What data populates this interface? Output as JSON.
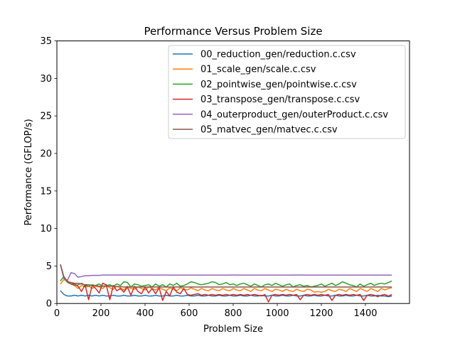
{
  "chart_data": {
    "type": "line",
    "title": "Performance Versus Problem Size",
    "xlabel": "Problem Size",
    "ylabel": "Performance (GFLOP/s)",
    "xlim": [
      0,
      1600
    ],
    "ylim": [
      0,
      35
    ],
    "xticks": [
      0,
      200,
      400,
      600,
      800,
      1000,
      1200,
      1400
    ],
    "yticks": [
      0,
      5,
      10,
      15,
      20,
      25,
      30,
      35
    ],
    "grid": false,
    "legend_position": "top-right",
    "x_start": 16,
    "x_step": 16,
    "series": [
      {
        "name": "00_reduction_gen/reduction.c.csv",
        "color": "#1f77b4",
        "values": [
          1.7,
          1.2,
          1.0,
          1.0,
          1.1,
          1.0,
          1.1,
          1.0,
          1.1,
          1.0,
          1.1,
          1.0,
          1.1,
          1.0,
          1.0,
          1.1,
          1.0,
          1.0,
          1.1,
          1.0,
          1.0,
          1.1,
          1.0,
          1.0,
          1.1,
          1.0,
          1.0,
          1.1,
          1.0,
          1.0,
          1.1,
          1.0,
          1.0,
          1.1,
          1.0,
          1.0,
          1.1,
          1.0,
          1.0,
          1.1,
          1.0,
          1.0,
          1.1,
          1.0,
          1.0,
          1.1,
          1.0,
          1.0,
          1.1,
          1.0,
          1.0,
          1.1,
          1.0,
          1.0,
          1.1,
          1.0,
          1.0,
          1.1,
          1.0,
          1.0,
          1.1,
          1.0,
          1.0,
          1.1,
          1.0,
          1.0,
          1.1,
          1.0,
          1.0,
          1.1,
          1.0,
          1.0,
          1.1,
          1.0,
          1.0,
          1.1,
          1.0,
          1.0,
          1.1,
          1.0,
          1.0,
          1.1,
          1.0,
          1.0,
          1.1,
          1.0,
          1.0,
          1.1,
          1.0,
          1.0,
          1.1,
          1.0,
          1.0,
          0.9,
          1.0
        ]
      },
      {
        "name": "01_scale_gen/scale.c.csv",
        "color": "#ff7f0e",
        "values": [
          2.6,
          3.2,
          2.9,
          2.6,
          2.4,
          2.0,
          2.4,
          2.2,
          2.3,
          2.0,
          2.3,
          2.2,
          2.0,
          2.4,
          2.1,
          1.9,
          2.3,
          2.1,
          1.8,
          2.3,
          2.0,
          1.9,
          2.2,
          2.0,
          1.8,
          2.2,
          2.0,
          1.8,
          2.1,
          1.9,
          1.7,
          2.1,
          1.9,
          1.7,
          2.1,
          1.9,
          1.8,
          2.1,
          1.9,
          1.7,
          2.0,
          1.8,
          1.7,
          2.0,
          1.8,
          1.7,
          2.0,
          1.8,
          1.7,
          2.0,
          1.8,
          1.7,
          2.0,
          1.8,
          1.6,
          2.0,
          1.8,
          1.7,
          2.0,
          1.8,
          1.6,
          1.9,
          1.8,
          1.6,
          1.9,
          1.7,
          1.6,
          1.9,
          1.7,
          1.6,
          1.9,
          1.8,
          1.5,
          1.6,
          1.5,
          1.6,
          1.9,
          1.7,
          1.6,
          1.9,
          1.8,
          1.6,
          2.0,
          1.8,
          1.6,
          2.0,
          1.8,
          1.6,
          2.0,
          1.8,
          1.6,
          2.0,
          1.8,
          2.0,
          2.1
        ]
      },
      {
        "name": "02_pointwise_gen/pointwise.c.csv",
        "color": "#2ca02c",
        "values": [
          3.0,
          3.6,
          2.8,
          2.6,
          2.4,
          2.5,
          2.7,
          2.4,
          2.3,
          2.5,
          2.4,
          2.6,
          2.3,
          2.4,
          2.5,
          2.3,
          2.6,
          2.4,
          2.9,
          2.8,
          2.2,
          2.6,
          2.5,
          2.3,
          2.4,
          2.5,
          2.2,
          2.6,
          2.3,
          2.5,
          2.2,
          2.6,
          2.4,
          2.7,
          2.3,
          2.4,
          2.6,
          2.9,
          2.8,
          2.6,
          2.5,
          2.6,
          2.7,
          2.9,
          2.8,
          2.5,
          2.6,
          2.8,
          2.5,
          2.6,
          2.4,
          2.6,
          2.7,
          2.5,
          2.3,
          2.6,
          2.4,
          2.2,
          2.5,
          2.6,
          2.4,
          2.7,
          2.5,
          2.3,
          2.5,
          2.6,
          2.2,
          2.4,
          2.5,
          2.3,
          2.4,
          2.2,
          2.3,
          2.4,
          2.6,
          2.3,
          2.5,
          2.7,
          2.4,
          2.6,
          2.9,
          2.7,
          2.5,
          2.4,
          2.2,
          2.6,
          2.3,
          2.5,
          2.7,
          2.4,
          2.6,
          2.7,
          2.6,
          2.8,
          3.0
        ]
      },
      {
        "name": "03_transpose_gen/transpose.c.csv",
        "color": "#d62728",
        "values": [
          5.2,
          3.5,
          3.0,
          2.6,
          2.6,
          2.3,
          1.6,
          2.5,
          0.5,
          2.4,
          2.0,
          1.4,
          2.7,
          2.5,
          0.5,
          2.4,
          1.7,
          2.0,
          1.5,
          2.2,
          1.1,
          2.3,
          1.6,
          1.3,
          2.2,
          1.4,
          2.0,
          1.3,
          2.1,
          0.4,
          1.6,
          1.0,
          2.2,
          1.5,
          1.3,
          2.0,
          1.2,
          1.1,
          1.2,
          1.3,
          1.1,
          1.2,
          1.1,
          1.2,
          1.1,
          1.2,
          1.1,
          1.2,
          1.1,
          1.2,
          1.1,
          1.2,
          1.1,
          1.2,
          1.1,
          1.2,
          1.1,
          1.0,
          1.2,
          0.2,
          1.1,
          1.2,
          1.1,
          1.2,
          1.1,
          1.2,
          1.1,
          1.2,
          0.5,
          1.1,
          1.2,
          1.1,
          1.2,
          1.1,
          1.2,
          1.1,
          1.2,
          0.4,
          1.1,
          1.2,
          1.1,
          1.2,
          1.1,
          1.2,
          1.1,
          1.2,
          0.4,
          1.1,
          1.2,
          1.1,
          0.9,
          1.1,
          1.2,
          1.0,
          1.2
        ]
      },
      {
        "name": "04_outerproduct_gen/outerProduct.c.csv",
        "color": "#9467bd",
        "values": [
          5.2,
          3.3,
          3.1,
          4.1,
          4.0,
          3.5,
          3.6,
          3.7,
          3.7,
          3.75,
          3.75,
          3.75,
          3.8,
          3.8,
          3.8,
          3.8,
          3.8,
          3.8,
          3.8,
          3.8,
          3.8,
          3.8,
          3.8,
          3.8,
          3.8,
          3.8,
          3.8,
          3.78,
          3.8,
          3.8,
          3.8,
          3.78,
          3.78,
          3.78,
          3.78,
          3.78,
          3.78,
          3.78,
          3.78,
          3.78,
          3.78,
          3.78,
          3.78,
          3.78,
          3.78,
          3.78,
          3.78,
          3.78,
          3.8,
          3.8,
          3.8,
          3.78,
          3.78,
          3.78,
          3.78,
          3.78,
          3.78,
          3.78,
          3.78,
          3.78,
          3.78,
          3.78,
          3.78,
          3.78,
          3.78,
          3.78,
          3.8,
          3.8,
          3.8,
          3.78,
          3.78,
          3.78,
          3.78,
          3.78,
          3.78,
          3.78,
          3.78,
          3.78,
          3.78,
          3.78,
          3.78,
          3.78,
          3.78,
          3.78,
          3.78,
          3.78,
          3.78,
          3.78,
          3.78,
          3.78,
          3.78,
          3.78,
          3.78,
          3.78,
          3.78
        ]
      },
      {
        "name": "05_matvec_gen/matvec.c.csv",
        "color": "#8c564b",
        "values": [
          5.2,
          3.5,
          2.9,
          2.8,
          2.7,
          2.7,
          2.6,
          2.5,
          2.5,
          2.4,
          2.4,
          2.3,
          2.3,
          2.3,
          2.3,
          2.3,
          2.25,
          2.25,
          2.2,
          2.2,
          2.2,
          2.2,
          2.2,
          2.2,
          2.2,
          2.2,
          2.2,
          2.2,
          2.2,
          2.2,
          2.2,
          2.2,
          2.2,
          2.2,
          2.2,
          2.2,
          2.2,
          2.2,
          2.2,
          2.2,
          2.2,
          2.2,
          2.2,
          2.2,
          2.2,
          2.2,
          2.2,
          2.2,
          2.2,
          2.2,
          2.2,
          2.2,
          2.2,
          2.2,
          2.2,
          2.2,
          2.2,
          2.2,
          2.2,
          2.2,
          2.2,
          2.2,
          2.2,
          2.2,
          2.2,
          2.2,
          2.2,
          2.2,
          2.2,
          2.2,
          2.2,
          2.2,
          2.2,
          2.2,
          2.2,
          2.2,
          2.2,
          2.2,
          2.2,
          2.2,
          2.2,
          2.2,
          2.2,
          2.2,
          2.2,
          2.2,
          2.2,
          2.2,
          2.2,
          2.2,
          2.2,
          2.2,
          2.2,
          2.2,
          2.2
        ]
      }
    ]
  }
}
